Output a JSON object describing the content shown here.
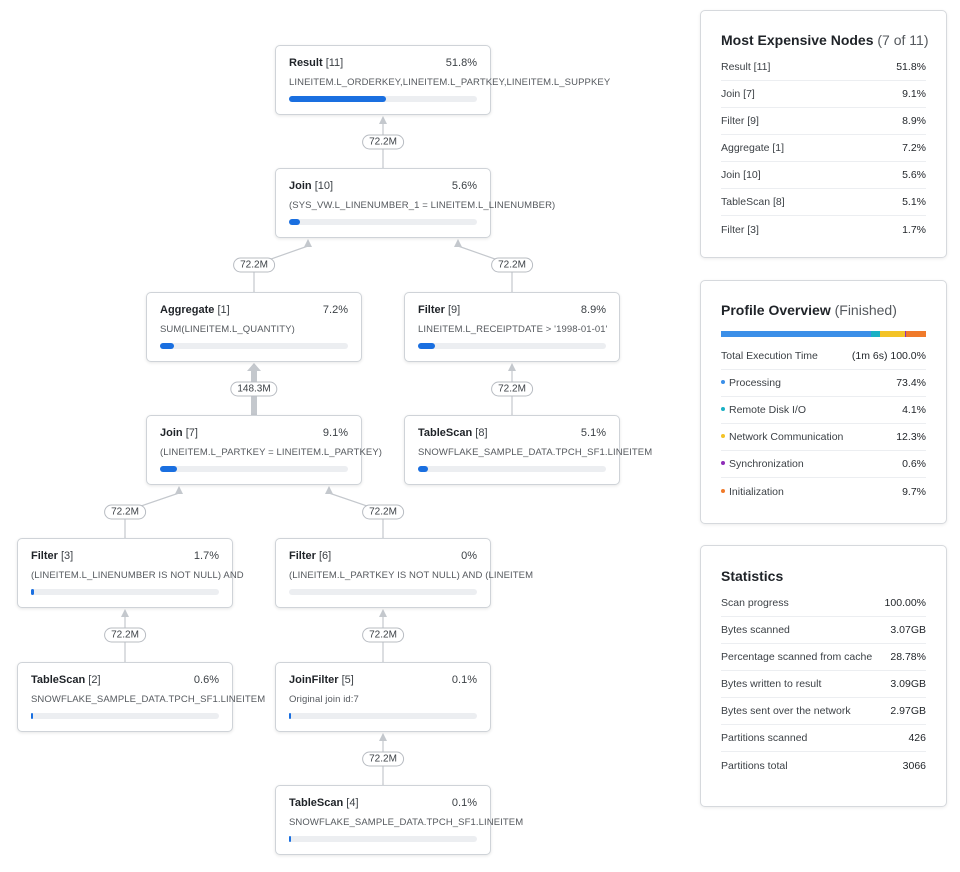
{
  "colors": {
    "bar": "#1a6fe0",
    "processing": "#3b8fe8",
    "remote_disk": "#1ab0c4",
    "network": "#f3c327",
    "synchronization": "#8f2db8",
    "initialization": "#f07a2a"
  },
  "nodes": [
    {
      "key": "n11",
      "name": "Result",
      "id": "[11]",
      "pct_label": "51.8%",
      "pct": 51.8,
      "desc": "LINEITEM.L_ORDERKEY,LINEITEM.L_PARTKEY,LINEITEM.L_SUPPKEY"
    },
    {
      "key": "n10",
      "name": "Join",
      "id": "[10]",
      "pct_label": "5.6%",
      "pct": 5.6,
      "desc": "(SYS_VW.L_LINENUMBER_1 = LINEITEM.L_LINENUMBER)"
    },
    {
      "key": "n1",
      "name": "Aggregate",
      "id": "[1]",
      "pct_label": "7.2%",
      "pct": 7.2,
      "desc": "SUM(LINEITEM.L_QUANTITY)"
    },
    {
      "key": "n9",
      "name": "Filter",
      "id": "[9]",
      "pct_label": "8.9%",
      "pct": 8.9,
      "desc": "LINEITEM.L_RECEIPTDATE > '1998-01-01'"
    },
    {
      "key": "n7",
      "name": "Join",
      "id": "[7]",
      "pct_label": "9.1%",
      "pct": 9.1,
      "desc": "(LINEITEM.L_PARTKEY = LINEITEM.L_PARTKEY)"
    },
    {
      "key": "n8",
      "name": "TableScan",
      "id": "[8]",
      "pct_label": "5.1%",
      "pct": 5.1,
      "desc": "SNOWFLAKE_SAMPLE_DATA.TPCH_SF1.LINEITEM"
    },
    {
      "key": "n3",
      "name": "Filter",
      "id": "[3]",
      "pct_label": "1.7%",
      "pct": 1.7,
      "desc": "(LINEITEM.L_LINENUMBER IS NOT NULL) AND"
    },
    {
      "key": "n6",
      "name": "Filter",
      "id": "[6]",
      "pct_label": "0%",
      "pct": 0,
      "desc": "(LINEITEM.L_PARTKEY IS NOT NULL) AND (LINEITEM"
    },
    {
      "key": "n2",
      "name": "TableScan",
      "id": "[2]",
      "pct_label": "0.6%",
      "pct": 0.6,
      "desc": "SNOWFLAKE_SAMPLE_DATA.TPCH_SF1.LINEITEM"
    },
    {
      "key": "n5",
      "name": "JoinFilter",
      "id": "[5]",
      "pct_label": "0.1%",
      "pct": 0.1,
      "desc": "Original join id:7"
    },
    {
      "key": "n4",
      "name": "TableScan",
      "id": "[4]",
      "pct_label": "0.1%",
      "pct": 0.1,
      "desc": "SNOWFLAKE_SAMPLE_DATA.TPCH_SF1.LINEITEM"
    }
  ],
  "edges": [
    {
      "key": "e10_11",
      "label": "72.2M"
    },
    {
      "key": "e1_10",
      "label": "72.2M"
    },
    {
      "key": "e9_10",
      "label": "72.2M"
    },
    {
      "key": "e7_1",
      "label": "148.3M"
    },
    {
      "key": "e8_9",
      "label": "72.2M"
    },
    {
      "key": "e3_7",
      "label": "72.2M"
    },
    {
      "key": "e6_7",
      "label": "72.2M"
    },
    {
      "key": "e2_3",
      "label": "72.2M"
    },
    {
      "key": "e5_6",
      "label": "72.2M"
    },
    {
      "key": "e4_5",
      "label": "72.2M"
    }
  ],
  "expensive": {
    "title": "Most Expensive Nodes",
    "subtitle": "(7 of 11)",
    "rows": [
      {
        "label": "Result [11]",
        "value": "51.8%"
      },
      {
        "label": "Join [7]",
        "value": "9.1%"
      },
      {
        "label": "Filter [9]",
        "value": "8.9%"
      },
      {
        "label": "Aggregate [1]",
        "value": "7.2%"
      },
      {
        "label": "Join [10]",
        "value": "5.6%"
      },
      {
        "label": "TableScan [8]",
        "value": "5.1%"
      },
      {
        "label": "Filter [3]",
        "value": "1.7%"
      }
    ]
  },
  "overview": {
    "title": "Profile Overview",
    "status": "(Finished)",
    "total_label": "Total Execution Time",
    "total_time": "(1m 6s)",
    "total_pct": "100.0%",
    "breakdown": [
      {
        "label": "Processing",
        "value": "73.4%",
        "pct": 73.4,
        "color_key": "processing"
      },
      {
        "label": "Remote Disk I/O",
        "value": "4.1%",
        "pct": 4.1,
        "color_key": "remote_disk"
      },
      {
        "label": "Network Communication",
        "value": "12.3%",
        "pct": 12.3,
        "color_key": "network"
      },
      {
        "label": "Synchronization",
        "value": "0.6%",
        "pct": 0.6,
        "color_key": "synchronization"
      },
      {
        "label": "Initialization",
        "value": "9.7%",
        "pct": 9.7,
        "color_key": "initialization"
      }
    ]
  },
  "statistics": {
    "title": "Statistics",
    "rows": [
      {
        "label": "Scan progress",
        "value": "100.00%"
      },
      {
        "label": "Bytes scanned",
        "value": "3.07GB"
      },
      {
        "label": "Percentage scanned from cache",
        "value": "28.78%"
      },
      {
        "label": "Bytes written to result",
        "value": "3.09GB"
      },
      {
        "label": "Bytes sent over the network",
        "value": "2.97GB"
      },
      {
        "label": "Partitions scanned",
        "value": "426"
      },
      {
        "label": "Partitions total",
        "value": "3066"
      }
    ]
  }
}
